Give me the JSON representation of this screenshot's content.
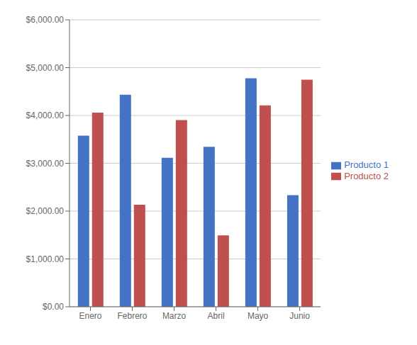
{
  "chart_data": {
    "type": "bar",
    "categories": [
      "Enero",
      "Febrero",
      "Marzo",
      "Abril",
      "Mayo",
      "Junio"
    ],
    "series": [
      {
        "name": "Producto 1",
        "color": "#4472C4",
        "values": [
          3578,
          4434,
          3116,
          3346,
          4776,
          2335
        ]
      },
      {
        "name": "Producto 2",
        "color": "#C0504D",
        "values": [
          4058,
          2135,
          3902,
          1494,
          4210,
          4749
        ]
      }
    ],
    "ylim": [
      0,
      6000
    ],
    "yticks": [
      {
        "value": 0,
        "label": "$0.00"
      },
      {
        "value": 1000,
        "label": "$1,000.00"
      },
      {
        "value": 2000,
        "label": "$2,000.00"
      },
      {
        "value": 3000,
        "label": "$3,000.00"
      },
      {
        "value": 4000,
        "label": "$4,000.00"
      },
      {
        "value": 5000,
        "label": "$5,000.00"
      },
      {
        "value": 6000,
        "label": "$6,000.00"
      }
    ],
    "grid": true,
    "legend": "right"
  }
}
